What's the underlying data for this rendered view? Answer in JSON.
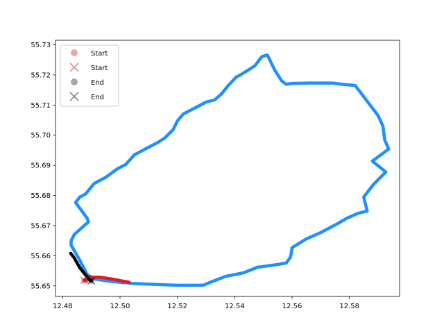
{
  "chart_data": {
    "type": "line",
    "title": "",
    "xlabel": "",
    "ylabel": "",
    "xlim": [
      12.4775,
      12.5975
    ],
    "ylim": [
      55.6465,
      55.7315
    ],
    "grid": false,
    "legend_position": "upper-left",
    "x_ticks": [
      {
        "value": 12.48,
        "label": "12.48"
      },
      {
        "value": 12.5,
        "label": "12.50"
      },
      {
        "value": 12.52,
        "label": "12.52"
      },
      {
        "value": 12.54,
        "label": "12.54"
      },
      {
        "value": 12.56,
        "label": "12.56"
      },
      {
        "value": 12.58,
        "label": "12.58"
      }
    ],
    "y_ticks": [
      {
        "value": 55.65,
        "label": "55.65"
      },
      {
        "value": 55.66,
        "label": "55.66"
      },
      {
        "value": 55.67,
        "label": "55.67"
      },
      {
        "value": 55.68,
        "label": "55.68"
      },
      {
        "value": 55.69,
        "label": "55.69"
      },
      {
        "value": 55.7,
        "label": "55.70"
      },
      {
        "value": 55.71,
        "label": "55.71"
      },
      {
        "value": 55.72,
        "label": "55.72"
      },
      {
        "value": 55.73,
        "label": "55.73"
      }
    ],
    "series": [
      {
        "color": "#1e90ff",
        "points": [
          [
            12.4884,
            55.6517
          ],
          [
            12.4889,
            55.6527
          ],
          [
            12.493,
            55.6524
          ],
          [
            12.498,
            55.6516
          ],
          [
            12.504,
            55.6508
          ],
          [
            12.512,
            55.6505
          ],
          [
            12.52,
            55.6502
          ],
          [
            12.529,
            55.6502
          ],
          [
            12.532,
            55.6514
          ],
          [
            12.537,
            55.6532
          ],
          [
            12.543,
            55.6543
          ],
          [
            12.548,
            55.6562
          ],
          [
            12.555,
            55.6571
          ],
          [
            12.558,
            55.6576
          ],
          [
            12.5595,
            55.6596
          ],
          [
            12.56,
            55.6627
          ],
          [
            12.565,
            55.6656
          ],
          [
            12.57,
            55.6677
          ],
          [
            12.576,
            55.6707
          ],
          [
            12.579,
            55.6724
          ],
          [
            12.583,
            55.6741
          ],
          [
            12.5862,
            55.6748
          ],
          [
            12.585,
            55.6795
          ],
          [
            12.5885,
            55.6838
          ],
          [
            12.5927,
            55.6878
          ],
          [
            12.588,
            55.6914
          ],
          [
            12.5937,
            55.6954
          ],
          [
            12.5923,
            55.6985
          ],
          [
            12.5917,
            55.703
          ],
          [
            12.59,
            55.7065
          ],
          [
            12.586,
            55.7115
          ],
          [
            12.582,
            55.7165
          ],
          [
            12.5775,
            55.7169
          ],
          [
            12.574,
            55.7173
          ],
          [
            12.566,
            55.7173
          ],
          [
            12.56,
            55.7172
          ],
          [
            12.558,
            55.7169
          ],
          [
            12.5564,
            55.718
          ],
          [
            12.554,
            55.7215
          ],
          [
            12.5514,
            55.7266
          ],
          [
            12.5495,
            55.7261
          ],
          [
            12.547,
            55.723
          ],
          [
            12.542,
            55.72
          ],
          [
            12.5405,
            55.7193
          ],
          [
            12.5375,
            55.7162
          ],
          [
            12.5355,
            55.7138
          ],
          [
            12.533,
            55.7117
          ],
          [
            12.53,
            55.711
          ],
          [
            12.526,
            55.709
          ],
          [
            12.522,
            55.707
          ],
          [
            12.52,
            55.7047
          ],
          [
            12.5185,
            55.7018
          ],
          [
            12.5155,
            55.699
          ],
          [
            12.513,
            55.6975
          ],
          [
            12.509,
            55.6955
          ],
          [
            12.505,
            55.6935
          ],
          [
            12.502,
            55.6903
          ],
          [
            12.499,
            55.6888
          ],
          [
            12.495,
            55.686
          ],
          [
            12.491,
            55.684
          ],
          [
            12.488,
            55.6805
          ],
          [
            12.486,
            55.6795
          ],
          [
            12.4845,
            55.6777
          ],
          [
            12.485,
            55.677
          ],
          [
            12.4885,
            55.6725
          ],
          [
            12.489,
            55.6712
          ],
          [
            12.4875,
            55.67
          ],
          [
            12.484,
            55.667
          ],
          [
            12.483,
            55.6651
          ],
          [
            12.4829,
            55.6636
          ],
          [
            12.486,
            55.6585
          ],
          [
            12.4885,
            55.6538
          ],
          [
            12.491,
            55.6523
          ],
          [
            12.496,
            55.6516
          ],
          [
            12.5,
            55.6512
          ],
          [
            12.5015,
            55.651
          ]
        ]
      },
      {
        "color": "#e31a1c",
        "points": [
          [
            12.4875,
            55.6518
          ],
          [
            12.489,
            55.6529
          ],
          [
            12.493,
            55.6529
          ],
          [
            12.497,
            55.6523
          ],
          [
            12.501,
            55.6516
          ],
          [
            12.5032,
            55.6512
          ]
        ]
      },
      {
        "color": "#000000",
        "points": [
          [
            12.4828,
            55.6608
          ],
          [
            12.484,
            55.6593
          ],
          [
            12.486,
            55.656
          ],
          [
            12.488,
            55.6536
          ],
          [
            12.4895,
            55.6519
          ],
          [
            12.49,
            55.6517
          ]
        ]
      }
    ],
    "markers": [
      {
        "kind": "circle",
        "x": 12.4875,
        "y": 55.6518,
        "color": "#e31a1c",
        "alpha": 0.35
      },
      {
        "kind": "cross",
        "x": 12.4875,
        "y": 55.6518,
        "color": "#e31a1c",
        "alpha": 0.55
      },
      {
        "kind": "circle",
        "x": 12.49,
        "y": 55.6517,
        "color": "#000000",
        "alpha": 0.35
      },
      {
        "kind": "cross",
        "x": 12.49,
        "y": 55.6517,
        "color": "#000000",
        "alpha": 0.55
      }
    ],
    "legend": [
      {
        "label": "Start",
        "marker": "circle",
        "color": "#f4a3a3"
      },
      {
        "label": "Start",
        "marker": "cross",
        "color": "#ee7777"
      },
      {
        "label": "End",
        "marker": "circle",
        "color": "#a6a6a6"
      },
      {
        "label": "End",
        "marker": "cross",
        "color": "#7a7a7a"
      }
    ]
  }
}
